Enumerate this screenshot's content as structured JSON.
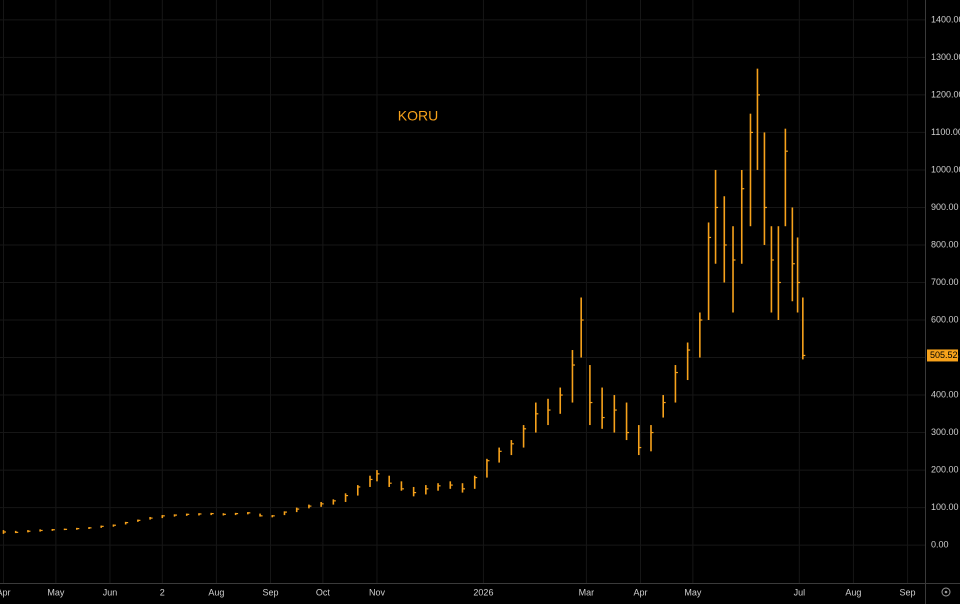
{
  "chart_data": {
    "type": "ohlc",
    "title": "KORU",
    "color": "#f7a21b",
    "grid": true,
    "x": [
      0,
      7,
      14,
      21,
      28,
      35,
      42,
      49,
      56,
      63,
      70,
      77,
      84,
      91,
      98,
      105,
      112,
      119,
      126,
      133,
      140,
      147,
      154,
      161,
      168,
      175,
      182,
      189,
      196,
      203,
      210,
      214,
      221,
      228,
      235,
      242,
      249,
      256,
      263,
      270,
      277,
      284,
      291,
      298,
      305,
      312,
      319,
      326,
      331,
      336,
      343,
      350,
      357,
      364,
      371,
      378,
      385,
      392,
      399,
      404,
      408,
      413,
      418,
      423,
      428,
      432,
      436,
      440,
      444,
      448,
      452,
      455,
      458
    ],
    "high": [
      40,
      38,
      40,
      42,
      43,
      44,
      46,
      48,
      52,
      55,
      62,
      68,
      75,
      80,
      82,
      84,
      85,
      86,
      85,
      86,
      88,
      84,
      80,
      90,
      100,
      108,
      115,
      122,
      138,
      160,
      185,
      200,
      185,
      170,
      155,
      160,
      165,
      170,
      165,
      185,
      230,
      260,
      280,
      320,
      380,
      390,
      420,
      520,
      660,
      480,
      420,
      400,
      380,
      320,
      320,
      400,
      480,
      540,
      620,
      860,
      1000,
      930,
      850,
      1000,
      1150,
      1270,
      1100,
      850,
      850,
      1110,
      900,
      820,
      660
    ],
    "low": [
      30,
      32,
      34,
      36,
      38,
      40,
      41,
      43,
      46,
      49,
      55,
      62,
      68,
      72,
      76,
      78,
      79,
      80,
      79,
      80,
      82,
      76,
      74,
      80,
      88,
      98,
      102,
      108,
      115,
      132,
      155,
      170,
      155,
      145,
      130,
      135,
      145,
      150,
      140,
      150,
      180,
      220,
      240,
      260,
      300,
      320,
      350,
      380,
      500,
      320,
      310,
      300,
      280,
      240,
      250,
      340,
      380,
      440,
      500,
      600,
      750,
      700,
      620,
      750,
      850,
      1000,
      800,
      620,
      600,
      850,
      650,
      620,
      495
    ],
    "close": [
      35,
      34,
      37,
      39,
      41,
      42,
      44,
      46,
      50,
      53,
      60,
      66,
      72,
      78,
      80,
      82,
      83,
      84,
      82,
      84,
      86,
      78,
      78,
      88,
      96,
      104,
      110,
      118,
      132,
      155,
      175,
      190,
      165,
      150,
      140,
      150,
      158,
      160,
      150,
      180,
      225,
      250,
      270,
      310,
      350,
      360,
      400,
      480,
      600,
      380,
      340,
      360,
      300,
      260,
      300,
      380,
      460,
      520,
      600,
      820,
      900,
      800,
      760,
      950,
      1100,
      1200,
      900,
      760,
      700,
      1050,
      750,
      700,
      505.52
    ],
    "xlim": [
      -2,
      528
    ],
    "ylim": [
      -101,
      1453
    ],
    "xticks": [
      {
        "value": 0,
        "label": "Apr"
      },
      {
        "value": 30,
        "label": "May"
      },
      {
        "value": 61,
        "label": "Jun"
      },
      {
        "value": 91,
        "label": "2"
      },
      {
        "value": 122,
        "label": "Aug"
      },
      {
        "value": 153,
        "label": "Sep"
      },
      {
        "value": 183,
        "label": "Oct"
      },
      {
        "value": 214,
        "label": "Nov"
      },
      {
        "value": 275,
        "label": "2026"
      },
      {
        "value": 334,
        "label": "Mar"
      },
      {
        "value": 365,
        "label": "Apr"
      },
      {
        "value": 395,
        "label": "May"
      },
      {
        "value": 456,
        "label": "Jul"
      },
      {
        "value": 487,
        "label": "Aug"
      },
      {
        "value": 518,
        "label": "Sep"
      }
    ],
    "yticks": [
      {
        "value": 0,
        "label": "0.00"
      },
      {
        "value": 100,
        "label": "100.00"
      },
      {
        "value": 200,
        "label": "200.00"
      },
      {
        "value": 300,
        "label": "300.00"
      },
      {
        "value": 400,
        "label": "400.00"
      },
      {
        "value": 500,
        "label": "500.00"
      },
      {
        "value": 600,
        "label": "600.00"
      },
      {
        "value": 700,
        "label": "700.00"
      },
      {
        "value": 800,
        "label": "800.00"
      },
      {
        "value": 900,
        "label": "900.00"
      },
      {
        "value": 1000,
        "label": "1000.00"
      },
      {
        "value": 1100,
        "label": "1100.00"
      },
      {
        "value": 1200,
        "label": "1200.00"
      },
      {
        "value": 1300,
        "label": "1300.00"
      },
      {
        "value": 1400,
        "label": "1400.00"
      }
    ]
  }
}
